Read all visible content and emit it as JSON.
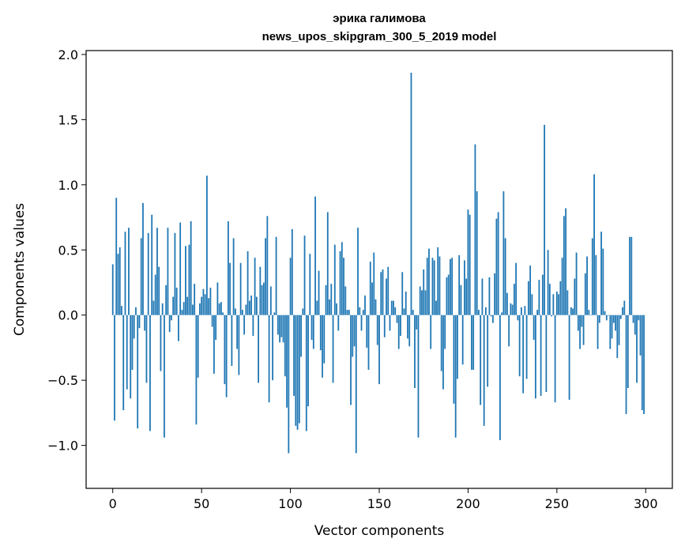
{
  "chart_data": {
    "type": "bar",
    "title": "эрика галимова",
    "subtitle": "news_upos_skipgram_300_5_2019 model",
    "xlabel": "Vector components",
    "ylabel": "Components values",
    "xlim": [
      -15,
      315
    ],
    "ylim": [
      -1.33,
      2.03
    ],
    "xticks": [
      0,
      50,
      100,
      150,
      200,
      250,
      300
    ],
    "xtick_labels": [
      "0",
      "50",
      "100",
      "150",
      "200",
      "250",
      "300"
    ],
    "yticks": [
      -1.0,
      -0.5,
      0.0,
      0.5,
      1.0,
      1.5,
      2.0
    ],
    "ytick_labels": [
      "−1.0",
      "−0.5",
      "0.0",
      "0.5",
      "1.0",
      "1.5",
      "2.0"
    ],
    "grid": false,
    "bar_color": "#1f77b4",
    "values": [
      0.39,
      -0.81,
      0.9,
      0.47,
      0.52,
      0.07,
      -0.73,
      0.64,
      -0.57,
      0.67,
      -0.64,
      -0.42,
      -0.18,
      0.06,
      -0.87,
      -0.1,
      0.59,
      0.86,
      -0.12,
      -0.52,
      0.63,
      -0.89,
      0.77,
      0.11,
      0.31,
      0.67,
      0.37,
      -0.43,
      0.09,
      -0.94,
      0.23,
      0.67,
      -0.13,
      -0.04,
      0.14,
      0.63,
      0.21,
      -0.2,
      0.71,
      0.04,
      0.1,
      0.53,
      0.14,
      0.54,
      0.72,
      0.08,
      0.24,
      -0.84,
      -0.48,
      0.09,
      0.14,
      0.2,
      0.16,
      1.07,
      0.13,
      0.21,
      -0.09,
      -0.45,
      -0.19,
      0.25,
      0.09,
      0.1,
      0.02,
      -0.53,
      -0.63,
      0.72,
      0.4,
      -0.39,
      0.59,
      0.05,
      -0.26,
      -0.46,
      0.4,
      0.04,
      -0.15,
      0.08,
      0.49,
      0.11,
      0.15,
      -0.16,
      0.44,
      0.14,
      -0.52,
      0.37,
      0.23,
      0.25,
      0.59,
      0.76,
      -0.67,
      0.22,
      -0.5,
      0.02,
      0.6,
      -0.15,
      -0.21,
      -0.17,
      -0.21,
      -0.47,
      -0.71,
      -1.06,
      0.44,
      0.66,
      -0.62,
      -0.85,
      -0.88,
      -0.83,
      -0.32,
      0.05,
      0.61,
      -0.89,
      -0.7,
      0.47,
      -0.19,
      -0.26,
      0.91,
      0.11,
      0.34,
      -0.27,
      -0.48,
      -0.37,
      0.23,
      0.79,
      0.12,
      0.24,
      -0.52,
      0.54,
      0.09,
      -0.12,
      0.49,
      0.56,
      0.44,
      0.22,
      0.04,
      0.04,
      -0.69,
      -0.32,
      -0.24,
      -1.06,
      0.67,
      0.06,
      -0.12,
      0.04,
      0.15,
      -0.25,
      -0.42,
      0.41,
      0.25,
      0.48,
      0.12,
      -0.23,
      -0.53,
      0.33,
      0.35,
      -0.17,
      0.28,
      0.37,
      -0.12,
      0.11,
      0.11,
      0.06,
      -0.06,
      -0.26,
      -0.16,
      0.33,
      0.05,
      0.18,
      -0.18,
      -0.24,
      1.86,
      0.04,
      -0.56,
      -0.11,
      -0.94,
      0.22,
      0.19,
      0.35,
      0.19,
      0.44,
      0.51,
      -0.26,
      0.44,
      0.42,
      0.11,
      0.52,
      0.45,
      -0.43,
      -0.57,
      -0.26,
      0.29,
      0.31,
      0.43,
      0.44,
      -0.68,
      -0.94,
      -0.49,
      0.46,
      0.23,
      -0.38,
      0.42,
      0.28,
      0.81,
      0.77,
      -0.42,
      -0.42,
      1.31,
      0.95,
      0.04,
      -0.69,
      0.28,
      -0.85,
      0.06,
      -0.55,
      0.29,
      -0.01,
      -0.06,
      0.32,
      0.74,
      0.79,
      -0.96,
      0.02,
      0.95,
      0.59,
      0.17,
      -0.24,
      0.09,
      0.08,
      0.24,
      0.4,
      -0.04,
      -0.47,
      0.06,
      -0.6,
      0.07,
      -0.49,
      0.26,
      0.38,
      0.16,
      -0.19,
      -0.64,
      0.04,
      0.27,
      -0.62,
      0.31,
      1.46,
      -0.59,
      0.5,
      0.24,
      -0.01,
      0.16,
      -0.67,
      0.18,
      0.16,
      0.26,
      0.44,
      0.76,
      0.82,
      0.19,
      -0.65,
      0.06,
      0.05,
      0.28,
      0.48,
      -0.12,
      -0.26,
      -0.09,
      -0.23,
      0.32,
      0.45,
      0.04,
      0.0,
      0.59,
      1.08,
      0.46,
      -0.26,
      -0.06,
      0.64,
      0.51,
      0.03,
      -0.04,
      0.0,
      -0.26,
      -0.18,
      -0.06,
      -0.12,
      -0.33,
      -0.23,
      -0.03,
      0.06,
      0.11,
      -0.76,
      -0.56,
      0.6,
      0.6,
      -0.06,
      -0.15,
      -0.52,
      -0.04,
      -0.31,
      -0.73,
      -0.76
    ]
  }
}
